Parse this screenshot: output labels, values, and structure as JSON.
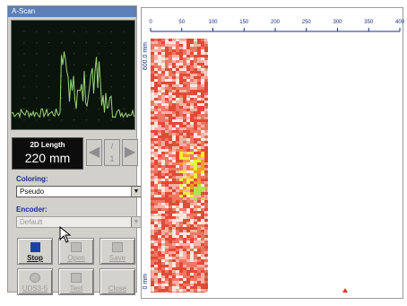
{
  "ascan": {
    "title": "A-Scan",
    "trace_color": "#9bd67a",
    "grid_color": "#3a5a3a"
  },
  "length": {
    "label": "2D Length",
    "value": "220 mm"
  },
  "nav": {
    "left_icon": "arrow-left-icon",
    "mid_label": "1",
    "right_icon": "arrow-right-icon"
  },
  "coloring": {
    "label": "Coloring:",
    "selected": "Pseudo"
  },
  "encoder": {
    "label": "Encoder:",
    "selected": "Default"
  },
  "buttons": {
    "stop": "Stop",
    "open": "Open",
    "save": "Save",
    "uds": "UDS3-5",
    "test": "Test",
    "close": "Close"
  },
  "bscan": {
    "x_ticks": [
      "0",
      "50",
      "100",
      "150",
      "200",
      "250",
      "300",
      "350",
      "400"
    ],
    "side_top": "600.0 mm",
    "side_bottom": "0 mm",
    "marker_color": "#d63a1e",
    "scanned_fraction": 0.22
  },
  "colors": {
    "title_bar": "#5b7fb8",
    "panel": "#d2d0cb",
    "label_text": "#1a2f86"
  }
}
